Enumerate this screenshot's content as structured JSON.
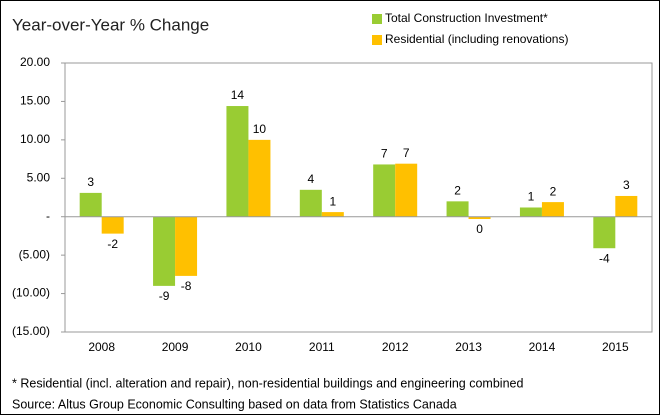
{
  "chart_data": {
    "type": "bar",
    "title": "Year-over-Year  % Change",
    "categories": [
      "2008",
      "2009",
      "2010",
      "2011",
      "2012",
      "2013",
      "2014",
      "2015"
    ],
    "series": [
      {
        "name": "Total Construction Investment*",
        "color": "#99cc33",
        "values": [
          3.1,
          -9.0,
          14.4,
          3.5,
          6.8,
          2.0,
          1.2,
          -4.1
        ],
        "value_labels": [
          "3",
          "-9",
          "14",
          "4",
          "7",
          "2",
          "1",
          "-4"
        ]
      },
      {
        "name": "Residential (including renovations)",
        "color": "#ffc000",
        "values": [
          -2.2,
          -7.7,
          10.0,
          0.6,
          6.9,
          -0.3,
          1.9,
          2.7
        ],
        "value_labels": [
          "-2",
          "-8",
          "10",
          "1",
          "7",
          "0",
          "2",
          "3"
        ]
      }
    ],
    "ylim": [
      -15,
      20
    ],
    "yticks": [
      {
        "value": -15,
        "label": "(15.00)"
      },
      {
        "value": -10,
        "label": "(10.00)"
      },
      {
        "value": -5,
        "label": "(5.00)"
      },
      {
        "value": 0,
        "label": "-"
      },
      {
        "value": 5,
        "label": "5.00"
      },
      {
        "value": 10,
        "label": "10.00"
      },
      {
        "value": 15,
        "label": "15.00"
      },
      {
        "value": 20,
        "label": "20.00"
      }
    ],
    "grid": false,
    "legend": "top-right",
    "footnotes": [
      "* Residential (incl. alteration and repair), non-residential buildings and engineering combined",
      "Source: Altus Group Economic Consulting based on data from Statistics Canada"
    ]
  }
}
